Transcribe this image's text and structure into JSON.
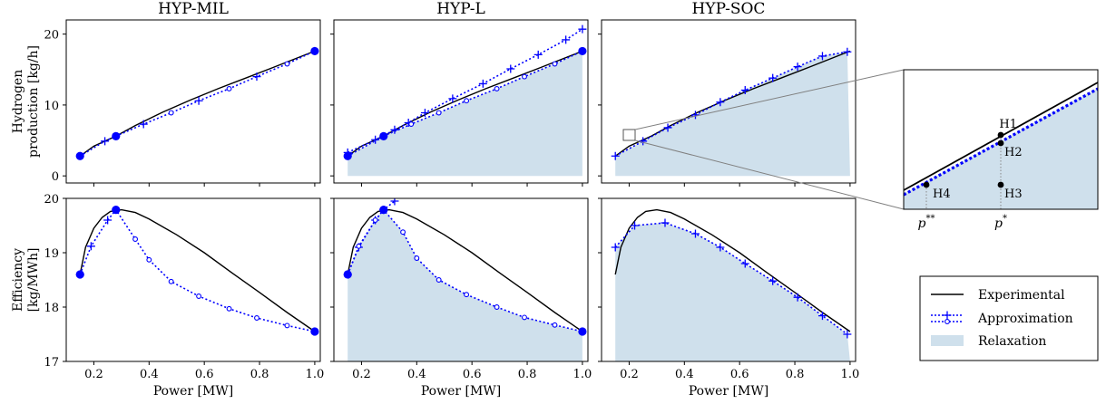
{
  "panel_titles": [
    "HYP-MIL",
    "HYP-L",
    "HYP-SOC"
  ],
  "ylabel_top_line1": "Hydrogen",
  "ylabel_top_line2": "production [kg/h]",
  "ylabel_bottom_line1": "Efficiency",
  "ylabel_bottom_line2": "[kg/MWh]",
  "xlabel": "Power [MW]",
  "legend": {
    "experimental": "Experimental",
    "approximation": "Approximation",
    "relaxation": "Relaxation"
  },
  "zoom": {
    "point_labels": [
      "H1",
      "H2",
      "H3",
      "H4"
    ],
    "p_star": "p",
    "p_star_sup": "*",
    "p_starstar": "p",
    "p_starstar_sup": "**"
  },
  "colors": {
    "experimental": "#000000",
    "approximation": "#0000ff",
    "relaxation": "#cfe0ec",
    "zoom_connector": "#808080"
  },
  "chart_data": {
    "type": "line",
    "xlim": [
      0.1,
      1.02
    ],
    "x_ticks": [
      0.2,
      0.4,
      0.6,
      0.8,
      1.0
    ],
    "x_tick_labels": [
      "0.2",
      "0.4",
      "0.6",
      "0.8",
      "1.0"
    ],
    "production": {
      "ylim": [
        -1,
        22
      ],
      "y_ticks": [
        0,
        10,
        20
      ],
      "y_tick_labels": [
        "0",
        "10",
        "20"
      ],
      "experimental": {
        "x": [
          0.15,
          0.2,
          0.28,
          0.35,
          0.45,
          0.55,
          0.65,
          0.75,
          0.85,
          1.0
        ],
        "y": [
          2.8,
          4.2,
          5.6,
          7.1,
          9.0,
          10.7,
          12.3,
          13.8,
          15.3,
          17.6
        ]
      },
      "mil": {
        "approx": {
          "x": [
            0.15,
            0.24,
            0.28,
            0.38,
            0.48,
            0.58,
            0.69,
            0.79,
            0.9,
            1.0
          ],
          "y": [
            2.8,
            4.9,
            5.6,
            7.3,
            8.9,
            10.6,
            12.3,
            14.0,
            15.8,
            17.6
          ]
        },
        "breakpoints": {
          "x": [
            0.15,
            0.28,
            1.0
          ],
          "y": [
            2.8,
            5.6,
            17.6
          ]
        }
      },
      "l": {
        "relaxation": {
          "x": [
            0.15,
            1.0
          ],
          "lower": [
            0,
            0
          ],
          "upper": [
            2.8,
            17.6
          ]
        },
        "approx_tangent": {
          "x": [
            0.15,
            0.25,
            0.32,
            0.37,
            0.43,
            0.53,
            0.64,
            0.74,
            0.84,
            0.94,
            1.0
          ],
          "y": [
            3.3,
            5.1,
            6.5,
            7.5,
            8.9,
            10.9,
            13.0,
            15.1,
            17.1,
            19.2,
            20.7
          ]
        },
        "approx_secant": {
          "x": [
            0.15,
            0.28,
            0.38,
            0.48,
            0.58,
            0.69,
            0.79,
            0.9,
            1.0
          ],
          "y": [
            2.8,
            5.6,
            7.3,
            8.9,
            10.6,
            12.3,
            14.0,
            15.8,
            17.6
          ]
        },
        "breakpoints": {
          "x": [
            0.15,
            0.28,
            1.0
          ],
          "y": [
            2.8,
            5.6,
            17.6
          ]
        }
      },
      "soc": {
        "relaxation": {
          "x": [
            0.15,
            1.0
          ],
          "lower": [
            0,
            0
          ],
          "upper": [
            2.8,
            17.6
          ]
        },
        "approx": {
          "x": [
            0.15,
            0.25,
            0.34,
            0.44,
            0.53,
            0.62,
            0.72,
            0.81,
            0.9,
            0.99
          ],
          "y": [
            2.8,
            4.9,
            6.8,
            8.6,
            10.4,
            12.1,
            13.8,
            15.4,
            16.9,
            17.5
          ]
        }
      }
    },
    "efficiency": {
      "ylim": [
        17,
        20
      ],
      "y_ticks": [
        17,
        18,
        19,
        20
      ],
      "y_tick_labels": [
        "17",
        "18",
        "19",
        "20"
      ],
      "experimental": {
        "x": [
          0.15,
          0.17,
          0.2,
          0.23,
          0.26,
          0.3,
          0.35,
          0.4,
          0.5,
          0.6,
          0.7,
          0.8,
          0.9,
          1.0
        ],
        "y": [
          18.6,
          19.1,
          19.45,
          19.65,
          19.76,
          19.79,
          19.74,
          19.62,
          19.33,
          19.0,
          18.63,
          18.27,
          17.9,
          17.55
        ]
      },
      "mil": {
        "approx": {
          "x": [
            0.15,
            0.19,
            0.25,
            0.28,
            0.35,
            0.4,
            0.48,
            0.58,
            0.69,
            0.79,
            0.9,
            1.0
          ],
          "y": [
            18.6,
            19.12,
            19.6,
            19.79,
            19.25,
            18.87,
            18.47,
            18.2,
            17.97,
            17.8,
            17.66,
            17.55
          ]
        },
        "breakpoints": {
          "x": [
            0.15,
            0.28,
            1.0
          ],
          "y": [
            18.6,
            19.79,
            17.55
          ]
        }
      },
      "l": {
        "relaxation": {
          "x": [
            0.15,
            1.0
          ],
          "lower": [
            17,
            17
          ],
          "upper": [
            18.6,
            17.55
          ]
        },
        "approx_tangent": {
          "x": [
            0.15,
            0.19,
            0.25,
            0.28,
            0.32
          ],
          "y": [
            18.6,
            19.1,
            19.6,
            19.79,
            19.95
          ]
        },
        "approx_secant": {
          "x": [
            0.15,
            0.19,
            0.25,
            0.28,
            0.35,
            0.4,
            0.48,
            0.58,
            0.69,
            0.79,
            0.9,
            1.0
          ],
          "y": [
            18.6,
            19.12,
            19.6,
            19.79,
            19.38,
            18.9,
            18.5,
            18.23,
            18.0,
            17.81,
            17.67,
            17.55
          ]
        },
        "breakpoints": {
          "x": [
            0.15,
            0.28,
            1.0
          ],
          "y": [
            18.6,
            19.79,
            17.55
          ]
        }
      },
      "soc": {
        "relaxation": {
          "x": [
            0.15,
            1.0
          ],
          "lower": [
            17,
            17
          ],
          "upper": [
            19.56,
            17.5
          ]
        },
        "approx": {
          "x": [
            0.15,
            0.22,
            0.33,
            0.44,
            0.53,
            0.62,
            0.72,
            0.81,
            0.9,
            0.99
          ],
          "y": [
            19.1,
            19.5,
            19.55,
            19.35,
            19.1,
            18.8,
            18.48,
            18.18,
            17.84,
            17.5
          ]
        }
      }
    }
  }
}
